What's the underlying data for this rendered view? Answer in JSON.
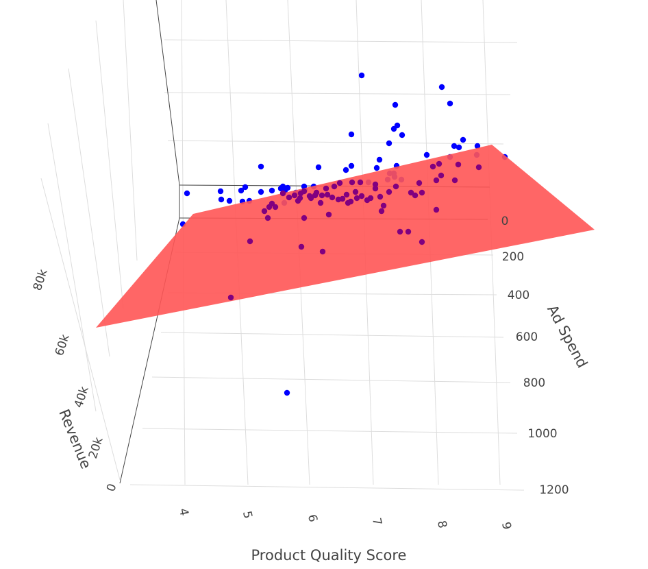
{
  "chart_data": {
    "type": "scatter",
    "subtype": "3d-scatter-with-regression-plane",
    "title": "",
    "axes": {
      "x": {
        "label": "Product Quality Score",
        "ticks": [
          "4",
          "5",
          "6",
          "7",
          "8",
          "9"
        ],
        "range": [
          4,
          9
        ]
      },
      "y": {
        "label": "Ad Spend",
        "ticks": [
          "0",
          "200",
          "400",
          "600",
          "800",
          "1000",
          "1200"
        ],
        "range": [
          0,
          1200
        ],
        "zero_tick_color": "#cc3333"
      },
      "z": {
        "label": "Revenue",
        "ticks": [
          "0",
          "20k",
          "40k",
          "60k",
          "80k"
        ],
        "range": [
          0,
          90000
        ]
      }
    },
    "grid": true,
    "plane": {
      "color": "#ff5555",
      "opacity": 0.9
    },
    "colors": {
      "above_plane": "#0000ff",
      "below_plane": "#800080",
      "axis_line": "#444444",
      "grid": "#dddddd"
    },
    "series": [
      {
        "points_above": [
          [
            528,
            110
          ],
          [
            645,
            127
          ],
          [
            577,
            153
          ],
          [
            657,
            151
          ],
          [
            575,
            188
          ],
          [
            580,
            183
          ],
          [
            513,
            196
          ],
          [
            587,
            197
          ],
          [
            568,
            209
          ],
          [
            663,
            213
          ],
          [
            670,
            215
          ],
          [
            676,
            204
          ],
          [
            697,
            213
          ],
          [
            623,
            226
          ],
          [
            657,
            229
          ],
          [
            737,
            229
          ],
          [
            696,
            226
          ],
          [
            554,
            233
          ],
          [
            550,
            245
          ],
          [
            513,
            242
          ],
          [
            465,
            244
          ],
          [
            505,
            248
          ],
          [
            579,
            242
          ],
          [
            575,
            253
          ],
          [
            569,
            253
          ],
          [
            576,
            258
          ],
          [
            586,
            262
          ],
          [
            566,
            262
          ],
          [
            538,
            266
          ],
          [
            381,
            243
          ],
          [
            358,
            273
          ],
          [
            352,
            278
          ],
          [
            273,
            282
          ],
          [
            322,
            279
          ],
          [
            323,
            291
          ],
          [
            335,
            293
          ],
          [
            354,
            294
          ],
          [
            364,
            293
          ],
          [
            381,
            280
          ],
          [
            397,
            278
          ],
          [
            410,
            275
          ],
          [
            413,
            272
          ],
          [
            416,
            278
          ],
          [
            420,
            274
          ],
          [
            432,
            281
          ],
          [
            444,
            272
          ],
          [
            445,
            277
          ],
          [
            458,
            272
          ],
          [
            415,
            296
          ],
          [
            267,
            327
          ],
          [
            419,
            573
          ]
        ],
        "points_below": [
          [
            632,
            243
          ],
          [
            641,
            239
          ],
          [
            669,
            240
          ],
          [
            699,
            244
          ],
          [
            644,
            256
          ],
          [
            612,
            267
          ],
          [
            637,
            263
          ],
          [
            600,
            281
          ],
          [
            606,
            285
          ],
          [
            616,
            281
          ],
          [
            578,
            272
          ],
          [
            548,
            269
          ],
          [
            526,
            266
          ],
          [
            514,
            266
          ],
          [
            496,
            267
          ],
          [
            488,
            272
          ],
          [
            476,
            275
          ],
          [
            462,
            281
          ],
          [
            452,
            286
          ],
          [
            444,
            279
          ],
          [
            438,
            289
          ],
          [
            430,
            285
          ],
          [
            413,
            282
          ],
          [
            397,
            297
          ],
          [
            402,
            302
          ],
          [
            393,
            302
          ],
          [
            386,
            308
          ],
          [
            391,
            318
          ],
          [
            444,
            318
          ],
          [
            480,
            313
          ],
          [
            555,
            287
          ],
          [
            560,
            300
          ],
          [
            557,
            308
          ],
          [
            536,
            292
          ],
          [
            521,
            289
          ],
          [
            512,
            294
          ],
          [
            506,
            284
          ],
          [
            500,
            290
          ],
          [
            494,
            291
          ],
          [
            485,
            288
          ],
          [
            470,
            285
          ],
          [
            468,
            296
          ],
          [
            478,
            284
          ],
          [
            460,
            285
          ],
          [
            568,
            280
          ],
          [
            584,
            338
          ],
          [
            596,
            338
          ],
          [
            616,
            353
          ],
          [
            637,
            306
          ],
          [
            365,
            352
          ],
          [
            440,
            360
          ],
          [
            471,
            367
          ],
          [
            337,
            434
          ],
          [
            664,
            263
          ],
          [
            548,
            275
          ],
          [
            528,
            286
          ],
          [
            541,
            289
          ],
          [
            519,
            280
          ],
          [
            508,
            296
          ],
          [
            454,
            289
          ],
          [
            435,
            293
          ],
          [
            422,
            288
          ],
          [
            439,
            282
          ]
        ]
      }
    ]
  }
}
